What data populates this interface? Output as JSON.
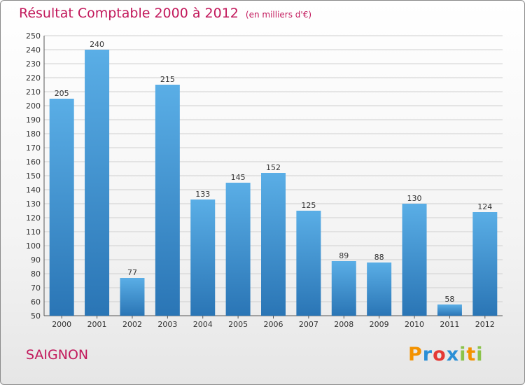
{
  "header": {
    "title": "Résultat Comptable 2000 à 2012",
    "subtitle": "(en milliers d'€)"
  },
  "footer": {
    "commune": "SAIGNON",
    "logo_letters": [
      "P",
      "r",
      "o",
      "x",
      "i",
      "t",
      "i"
    ],
    "logo_colors": [
      "#f39200",
      "#2a8fd6",
      "#e53935",
      "#2a8fd6",
      "#8bc34a",
      "#f39200",
      "#8bc34a"
    ]
  },
  "colors": {
    "bar_light": "#5aaee6",
    "bar_dark": "#2a75b5",
    "grid": "#cfcfcf",
    "title": "#c2185b"
  },
  "chart_data": {
    "type": "bar",
    "title": "Résultat Comptable 2000 à 2012",
    "subtitle": "(en milliers d'€)",
    "categories": [
      "2000",
      "2001",
      "2002",
      "2003",
      "2004",
      "2005",
      "2006",
      "2007",
      "2008",
      "2009",
      "2010",
      "2011",
      "2012"
    ],
    "values": [
      205,
      240,
      77,
      215,
      133,
      145,
      152,
      125,
      89,
      88,
      130,
      58,
      124
    ],
    "ylim": [
      50,
      250
    ],
    "ytick_step": 10,
    "grid": true,
    "legend": "none"
  }
}
